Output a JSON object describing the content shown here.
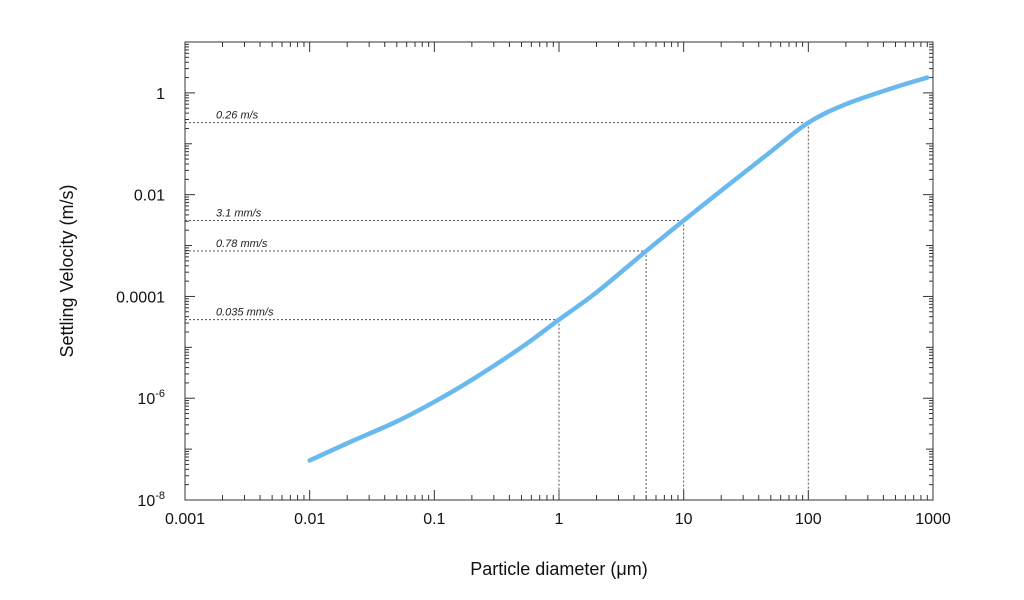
{
  "chart_data": {
    "type": "line",
    "xlabel": "Particle diameter (μm)",
    "ylabel": "Settling Velocity (m/s)",
    "x_scale": "log",
    "y_scale": "log",
    "xlim": [
      0.001,
      1000
    ],
    "ylim": [
      1e-08,
      10
    ],
    "x_ticks": [
      {
        "value": 0.001,
        "label": "0.001"
      },
      {
        "value": 0.01,
        "label": "0.01"
      },
      {
        "value": 0.1,
        "label": "0.1"
      },
      {
        "value": 1,
        "label": "1"
      },
      {
        "value": 10,
        "label": "10"
      },
      {
        "value": 100,
        "label": "100"
      },
      {
        "value": 1000,
        "label": "1000"
      }
    ],
    "y_ticks": [
      {
        "value": 1e-08,
        "base": "10",
        "exp": "-8"
      },
      {
        "value": 1e-06,
        "base": "10",
        "exp": "-6"
      },
      {
        "value": 0.0001,
        "label": "0.0001"
      },
      {
        "value": 0.01,
        "label": "0.01"
      },
      {
        "value": 1,
        "label": "1"
      }
    ],
    "grid": false,
    "series": [
      {
        "color": "#6ab9ee",
        "x": [
          0.01,
          0.02,
          0.05,
          0.1,
          0.2,
          0.5,
          1,
          2,
          5,
          10,
          20,
          50,
          100,
          200,
          500,
          900
        ],
        "y": [
          6e-08,
          1.3e-07,
          3.5e-07,
          8.5e-07,
          2.3e-06,
          1e-05,
          3.5e-05,
          0.00012,
          0.00078,
          0.0031,
          0.012,
          0.07,
          0.26,
          0.6,
          1.3,
          2.0
        ]
      }
    ],
    "annotations": [
      {
        "x": 1,
        "y": 3.5e-05,
        "text": "0.035 mm/s"
      },
      {
        "x": 5,
        "y": 0.00078,
        "text": "0.78 mm/s"
      },
      {
        "x": 10,
        "y": 0.0031,
        "text": "3.1 mm/s"
      },
      {
        "x": 100,
        "y": 0.26,
        "text": "0.26 m/s"
      }
    ]
  }
}
